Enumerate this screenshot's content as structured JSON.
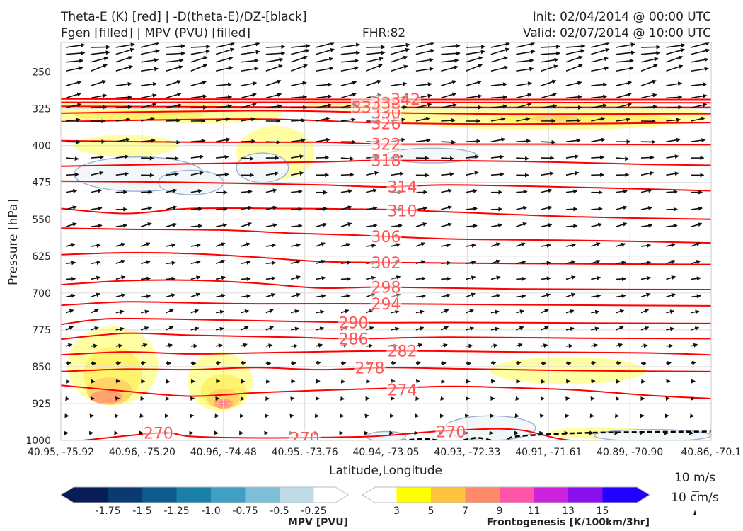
{
  "header": {
    "left_line1": "Theta-E (K) [red] | -D(theta-E)/DZ-[black]",
    "left_line2": "Fgen [filled] | MPV (PVU) [filled]",
    "center": "FHR:82",
    "right_line1": "Init: 02/04/2014 @ 00:00 UTC",
    "right_line2": "Valid: 02/07/2014 @ 10:00 UTC"
  },
  "chart_data": {
    "type": "cross-section",
    "ylabel": "Pressure [hPa]",
    "xlabel": "Latitude,Longitude",
    "y_ticks": [
      250,
      325,
      400,
      475,
      550,
      625,
      700,
      775,
      850,
      925,
      1000
    ],
    "ylim": [
      190,
      1000
    ],
    "y_scale": "linear (inverted)",
    "x_ticks": [
      "40.95, -75.92",
      "40.96, -75.20",
      "40.96, -74.48",
      "40.95, -73.76",
      "40.94, -73.05",
      "40.93, -72.33",
      "40.91, -71.61",
      "40.89, -70.90",
      "40.86, -70.1"
    ],
    "theta_e": {
      "color": "#ff0000",
      "label_color": "#ff5555",
      "contours": [
        {
          "value": 270,
          "p": [
            [
              0,
              1005
            ],
            [
              0.15,
              985
            ],
            [
              0.2,
              992
            ],
            [
              0.3,
              995
            ],
            [
              0.45,
              993
            ],
            [
              0.5,
              990
            ],
            [
              0.6,
              980
            ],
            [
              0.7,
              978
            ],
            [
              0.8,
              1002
            ],
            [
              1,
              1003
            ]
          ]
        },
        {
          "value": 274,
          "p": [
            [
              0,
              888
            ],
            [
              0.1,
              900
            ],
            [
              0.2,
              910
            ],
            [
              0.3,
              903
            ],
            [
              0.4,
              898
            ],
            [
              0.5,
              894
            ],
            [
              0.6,
              890
            ],
            [
              0.7,
              893
            ],
            [
              0.8,
              898
            ],
            [
              0.9,
              908
            ],
            [
              1,
              915
            ]
          ]
        },
        {
          "value": 278,
          "p": [
            [
              0,
              860
            ],
            [
              0.1,
              855
            ],
            [
              0.2,
              856
            ],
            [
              0.3,
              852
            ],
            [
              0.4,
              856
            ],
            [
              0.5,
              852
            ],
            [
              0.6,
              854
            ],
            [
              0.8,
              858
            ],
            [
              1,
              860
            ]
          ]
        },
        {
          "value": 282,
          "p": [
            [
              0,
              826
            ],
            [
              0.1,
              820
            ],
            [
              0.2,
              824
            ],
            [
              0.3,
              822
            ],
            [
              0.5,
              818
            ],
            [
              0.7,
              820
            ],
            [
              0.9,
              822
            ],
            [
              1,
              826
            ]
          ]
        },
        {
          "value": 286,
          "p": [
            [
              0,
              794
            ],
            [
              0.1,
              782
            ],
            [
              0.2,
              786
            ],
            [
              0.35,
              790
            ],
            [
              0.45,
              793
            ],
            [
              0.6,
              790
            ],
            [
              0.8,
              792
            ],
            [
              1,
              793
            ]
          ]
        },
        {
          "value": 290,
          "p": [
            [
              0,
              764
            ],
            [
              0.05,
              755
            ],
            [
              0.1,
              752
            ],
            [
              0.25,
              755
            ],
            [
              0.45,
              760
            ],
            [
              0.6,
              760
            ],
            [
              0.8,
              761
            ],
            [
              1,
              762
            ]
          ]
        },
        {
          "value": 294,
          "p": [
            [
              0,
              725
            ],
            [
              0.1,
              718
            ],
            [
              0.2,
              720
            ],
            [
              0.3,
              722
            ],
            [
              0.5,
              722
            ],
            [
              0.7,
              724
            ],
            [
              1,
              726
            ]
          ]
        },
        {
          "value": 298,
          "p": [
            [
              0,
              683
            ],
            [
              0.1,
              675
            ],
            [
              0.2,
              674
            ],
            [
              0.3,
              680
            ],
            [
              0.4,
              690
            ],
            [
              0.5,
              688
            ],
            [
              0.7,
              692
            ],
            [
              1,
              693
            ]
          ]
        },
        {
          "value": 302,
          "p": [
            [
              0,
              622
            ],
            [
              0.1,
              618
            ],
            [
              0.2,
              620
            ],
            [
              0.3,
              627
            ],
            [
              0.4,
              636
            ],
            [
              0.5,
              638
            ],
            [
              0.7,
              640
            ],
            [
              1,
              642
            ]
          ]
        },
        {
          "value": 306,
          "p": [
            [
              0,
              568
            ],
            [
              0.1,
              570
            ],
            [
              0.25,
              572
            ],
            [
              0.35,
              578
            ],
            [
              0.45,
              582
            ],
            [
              0.6,
              590
            ],
            [
              0.8,
              593
            ],
            [
              1,
              598
            ]
          ]
        },
        {
          "value": 310,
          "p": [
            [
              0,
              528
            ],
            [
              0.1,
              538
            ],
            [
              0.2,
              528
            ],
            [
              0.35,
              528
            ],
            [
              0.5,
              530
            ],
            [
              0.6,
              535
            ],
            [
              0.8,
              545
            ],
            [
              1,
              550
            ]
          ]
        },
        {
          "value": 314,
          "p": [
            [
              0,
              472
            ],
            [
              0.2,
              475
            ],
            [
              0.4,
              480
            ],
            [
              0.5,
              484
            ],
            [
              0.6,
              480
            ],
            [
              0.8,
              485
            ],
            [
              1,
              492
            ]
          ]
        },
        {
          "value": 318,
          "p": [
            [
              0,
              442
            ],
            [
              0.2,
              437
            ],
            [
              0.4,
              433
            ],
            [
              0.5,
              430
            ],
            [
              0.7,
              432
            ],
            [
              0.9,
              438
            ],
            [
              1,
              440
            ]
          ]
        },
        {
          "value": 322,
          "p": [
            [
              0,
              390
            ],
            [
              0.2,
              393
            ],
            [
              0.4,
              393
            ],
            [
              0.5,
              397
            ],
            [
              0.7,
              397
            ],
            [
              1,
              398
            ]
          ]
        },
        {
          "value": 326,
          "p": [
            [
              0,
              351
            ],
            [
              0.3,
              346
            ],
            [
              0.5,
              354
            ],
            [
              0.7,
              356
            ],
            [
              1,
              353
            ]
          ]
        },
        {
          "value": 330,
          "p": [
            [
              0,
              334
            ],
            [
              0.3,
              329
            ],
            [
              0.5,
              333
            ],
            [
              0.7,
              336
            ],
            [
              1,
              335
            ]
          ]
        },
        {
          "value": 334,
          "p": [
            [
              0,
              320
            ],
            [
              0.5,
              322
            ],
            [
              1,
              322
            ]
          ]
        },
        {
          "value": 338,
          "p": [
            [
              0,
              312
            ],
            [
              0.5,
              312
            ],
            [
              1,
              313
            ]
          ]
        },
        {
          "value": 342,
          "p": [
            [
              0,
              305
            ],
            [
              0.5,
              306
            ],
            [
              1,
              306
            ]
          ]
        }
      ],
      "labels": [
        {
          "text": "270",
          "x": 0.15,
          "p": 985
        },
        {
          "text": "270",
          "x": 0.375,
          "p": 995
        },
        {
          "text": "270",
          "x": 0.6,
          "p": 982
        },
        {
          "text": "274",
          "x": 0.525,
          "p": 897
        },
        {
          "text": "278",
          "x": 0.475,
          "p": 852
        },
        {
          "text": "282",
          "x": 0.525,
          "p": 818
        },
        {
          "text": "286",
          "x": 0.45,
          "p": 793
        },
        {
          "text": "290",
          "x": 0.45,
          "p": 760
        },
        {
          "text": "294",
          "x": 0.5,
          "p": 722
        },
        {
          "text": "298",
          "x": 0.5,
          "p": 688
        },
        {
          "text": "302",
          "x": 0.5,
          "p": 638
        },
        {
          "text": "306",
          "x": 0.5,
          "p": 585
        },
        {
          "text": "310",
          "x": 0.525,
          "p": 532
        },
        {
          "text": "314",
          "x": 0.525,
          "p": 483
        },
        {
          "text": "318",
          "x": 0.5,
          "p": 430
        },
        {
          "text": "322",
          "x": 0.5,
          "p": 397
        },
        {
          "text": "326",
          "x": 0.5,
          "p": 355
        },
        {
          "text": "330",
          "x": 0.5,
          "p": 333
        },
        {
          "text": "334",
          "x": 0.47,
          "p": 321
        },
        {
          "text": "338",
          "x": 0.5,
          "p": 313
        },
        {
          "text": "342",
          "x": 0.53,
          "p": 305
        }
      ]
    },
    "frontogenesis": {
      "colors": [
        "#ffff99",
        "#fff268",
        "#ffd266",
        "#ffa070",
        "#ff70a0"
      ],
      "patches": [
        {
          "level": 0,
          "x": 0.0,
          "p": 330,
          "rx": 0.13,
          "rp": 22
        },
        {
          "level": 0,
          "x": 0.22,
          "p": 335,
          "rx": 0.12,
          "rp": 20
        },
        {
          "level": 0,
          "x": 0.47,
          "p": 320,
          "rx": 0.1,
          "rp": 10
        },
        {
          "level": 0,
          "x": 0.75,
          "p": 340,
          "rx": 0.25,
          "rp": 28
        },
        {
          "level": 0,
          "x": 0.33,
          "p": 415,
          "rx": 0.06,
          "rp": 55
        },
        {
          "level": 0,
          "x": 0.1,
          "p": 400,
          "rx": 0.08,
          "rp": 22
        },
        {
          "level": 1,
          "x": 0.12,
          "p": 338,
          "rx": 0.1,
          "rp": 10
        },
        {
          "level": 1,
          "x": 0.8,
          "p": 346,
          "rx": 0.14,
          "rp": 12
        },
        {
          "level": 2,
          "x": 0.76,
          "p": 345,
          "rx": 0.04,
          "rp": 6
        },
        {
          "level": 0,
          "x": 0.08,
          "p": 848,
          "rx": 0.07,
          "rp": 80
        },
        {
          "level": 0,
          "x": 0.245,
          "p": 880,
          "rx": 0.05,
          "rp": 60
        },
        {
          "level": 0,
          "x": 0.78,
          "p": 858,
          "rx": 0.12,
          "rp": 28
        },
        {
          "level": 0,
          "x": 0.83,
          "p": 985,
          "rx": 0.08,
          "rp": 12
        },
        {
          "level": 0,
          "x": 0.93,
          "p": 990,
          "rx": 0.05,
          "rp": 10
        },
        {
          "level": 1,
          "x": 0.08,
          "p": 865,
          "rx": 0.045,
          "rp": 55
        },
        {
          "level": 1,
          "x": 0.25,
          "p": 900,
          "rx": 0.035,
          "rp": 35
        },
        {
          "level": 2,
          "x": 0.075,
          "p": 900,
          "rx": 0.035,
          "rp": 28
        },
        {
          "level": 2,
          "x": 0.25,
          "p": 915,
          "rx": 0.025,
          "rp": 20
        },
        {
          "level": 3,
          "x": 0.07,
          "p": 912,
          "rx": 0.025,
          "rp": 14
        },
        {
          "level": 3,
          "x": 0.25,
          "p": 925,
          "rx": 0.015,
          "rp": 10
        },
        {
          "level": 4,
          "x": 0.25,
          "p": 925,
          "rx": 0.007,
          "rp": 4
        }
      ]
    },
    "mpv": {
      "fill": "#f2f8fa",
      "edge": "#9eafd0",
      "regions": [
        {
          "x": 0.12,
          "p": 458,
          "rx": 0.1,
          "rp": 35
        },
        {
          "x": 0.2,
          "p": 475,
          "rx": 0.05,
          "rp": 25
        },
        {
          "x": 0.31,
          "p": 445,
          "rx": 0.04,
          "rp": 30
        },
        {
          "x": 0.57,
          "p": 420,
          "rx": 0.07,
          "rp": 15
        },
        {
          "x": 0.66,
          "p": 975,
          "rx": 0.07,
          "rp": 25
        },
        {
          "x": 0.5,
          "p": 992,
          "rx": 0.03,
          "rp": 10
        },
        {
          "x": 0.91,
          "p": 990,
          "rx": 0.09,
          "rp": 12
        }
      ]
    },
    "dthetae_dz_contour": {
      "color": "#000000",
      "style": "dashed",
      "p": [
        [
          0.5,
          1004
        ],
        [
          0.56,
          997
        ],
        [
          0.6,
          1004
        ],
        [
          0.64,
          995
        ],
        [
          0.68,
          1004
        ],
        [
          0.7,
          992
        ],
        [
          0.8,
          985
        ],
        [
          0.9,
          983
        ],
        [
          1,
          982
        ]
      ]
    },
    "wind_vectors": {
      "cols": 26,
      "pressures": [
        200,
        214,
        230,
        248,
        278,
        303,
        323,
        350,
        392,
        425,
        460,
        495,
        530,
        565,
        605,
        640,
        672,
        708,
        740,
        775,
        808,
        843,
        880,
        915,
        950,
        985
      ],
      "angles_deg": [
        -8,
        -10,
        -12,
        -15,
        -12,
        -10,
        -8,
        -6,
        -4,
        -2,
        -6,
        -6,
        -8,
        -12,
        -14,
        -12,
        -10,
        -14,
        -16,
        -18,
        -10,
        -4,
        0,
        0,
        0,
        0
      ],
      "lengths": [
        0.6,
        0.6,
        0.55,
        0.55,
        0.5,
        0.5,
        0.5,
        0.45,
        0.45,
        0.4,
        0.4,
        0.35,
        0.35,
        0.35,
        0.3,
        0.3,
        0.3,
        0.3,
        0.25,
        0.25,
        0.2,
        0.15,
        0.12,
        0.1,
        0.08,
        0.06
      ]
    }
  },
  "colorbar_mpv": {
    "title": "MPV [PVU]",
    "colors": [
      "#081d58",
      "#0b3a70",
      "#0d5a8c",
      "#1a80a8",
      "#3fa0c4",
      "#7ebfd8",
      "#bedde8",
      "#ffffff"
    ],
    "ticks": [
      "-1.75",
      "-1.5",
      "-1.25",
      "-1.0",
      "-0.75",
      "-0.5",
      "-0.25"
    ]
  },
  "colorbar_fgen": {
    "title": "Frontogenesis [K/100km/3hr]",
    "colors": [
      "#ffffff",
      "#ffff00",
      "#ffc43f",
      "#ff8a6a",
      "#ff55a8",
      "#cc22dd",
      "#8a10ee",
      "#2200ff"
    ],
    "ticks": [
      "3",
      "5",
      "7",
      "9",
      "11",
      "13",
      "15"
    ]
  },
  "reference_vectors": {
    "horizontal": "10 m/s",
    "vertical": "10 cm/s"
  }
}
